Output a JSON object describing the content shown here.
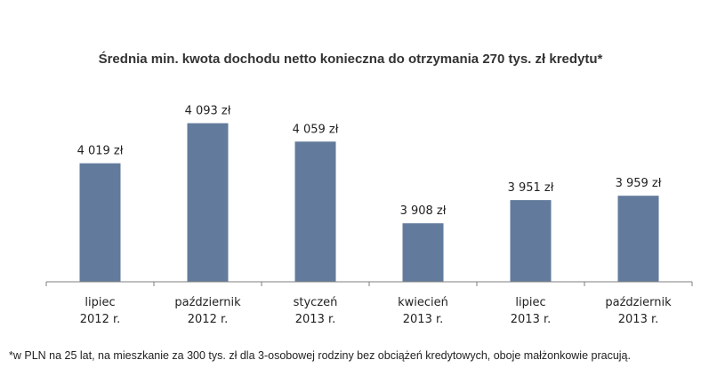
{
  "chart_data": {
    "type": "bar",
    "title": "Średnia min. kwota dochodu netto konieczna do otrzymania 270 tys. zł kredytu*",
    "categories": [
      [
        "lipiec",
        "2012 r."
      ],
      [
        "październik",
        "2012 r."
      ],
      [
        "styczeń",
        "2013 r."
      ],
      [
        "kwiecień",
        "2013 r."
      ],
      [
        "lipiec",
        "2013 r."
      ],
      [
        "październik",
        "2013 r."
      ]
    ],
    "values": [
      4019,
      4093,
      4059,
      3908,
      3951,
      3959
    ],
    "data_labels": [
      "4 019 zł",
      "4 093 zł",
      "4 059 zł",
      "3 908 zł",
      "3 951 zł",
      "3 959 zł"
    ],
    "ylim": [
      3800,
      4140
    ],
    "grid": false,
    "legend": "none",
    "bar_color": "#627b9c",
    "axis_color": "#7f7f7f",
    "footnote": "*w PLN na 25 lat, na mieszkanie za 300 tys. zł dla 3-osobowej rodziny bez obciążeń kredytowych, oboje małżonkowie pracują."
  }
}
